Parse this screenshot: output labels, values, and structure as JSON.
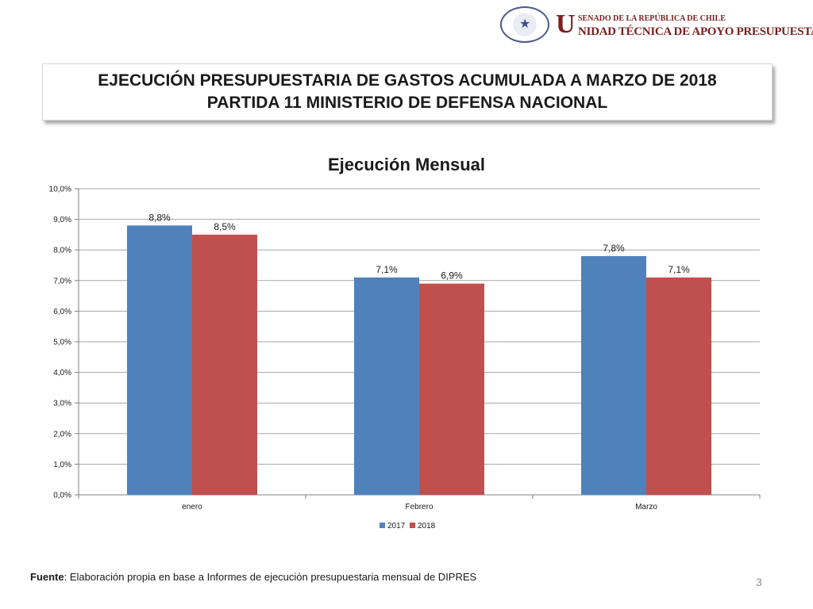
{
  "header": {
    "seal_icon": "senate-seal-icon",
    "unit_initial": "U",
    "unit_top": "SENADO DE LA REPÚBLICA DE CHILE",
    "unit_bottom": "NIDAD TÉCNICA DE APOYO PRESUPUESTARIO"
  },
  "title": {
    "line1": "EJECUCIÓN PRESUPUESTARIA DE GASTOS ACUMULADA A MARZO DE 2018",
    "line2": "PARTIDA 11 MINISTERIO DE DEFENSA NACIONAL"
  },
  "chart_data": {
    "type": "bar",
    "title": "Ejecución Mensual",
    "categories": [
      "enero",
      "Febrero",
      "Marzo"
    ],
    "series": [
      {
        "name": "2017",
        "values": [
          8.8,
          7.1,
          7.8
        ],
        "labels": [
          "8,8%",
          "7,1%",
          "7,8%"
        ],
        "color": "#4f81bd"
      },
      {
        "name": "2018",
        "values": [
          8.5,
          6.9,
          7.1
        ],
        "labels": [
          "8,5%",
          "6,9%",
          "7,1%"
        ],
        "color": "#c0504d"
      }
    ],
    "ylim": [
      0,
      10
    ],
    "yticks": [
      "0,0%",
      "1,0%",
      "2,0%",
      "3,0%",
      "4,0%",
      "5,0%",
      "6,0%",
      "7,0%",
      "8,0%",
      "9,0%",
      "10,0%"
    ],
    "grid": true,
    "legend": "bottom"
  },
  "footer": {
    "source_label": "Fuente",
    "source_text": ": Elaboración propia en base  a Informes de ejecución presupuestaria mensual de DIPRES"
  },
  "page_number": "3"
}
